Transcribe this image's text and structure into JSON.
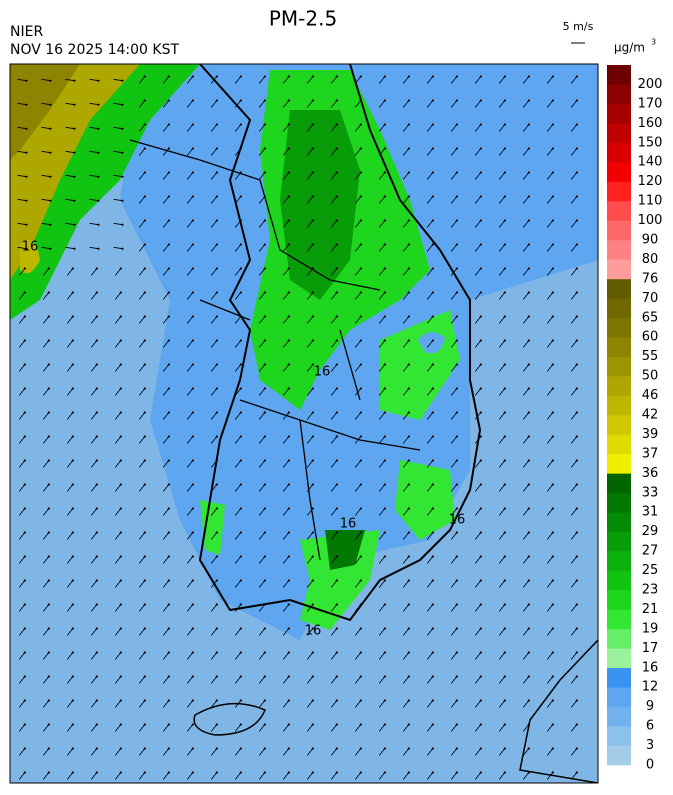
{
  "header": {
    "title": "PM-2.5",
    "agency": "NIER",
    "timestamp": "NOV 16 2025 14:00 KST",
    "wind_scale": "5 m/s",
    "unit": "µg/m",
    "unit_exponent": "3"
  },
  "map": {
    "contour_labels": [
      "16",
      "16",
      "16",
      "16",
      "16"
    ]
  },
  "colorbar": {
    "labels": [
      "0",
      "3",
      "6",
      "9",
      "12",
      "16",
      "17",
      "19",
      "21",
      "23",
      "25",
      "27",
      "29",
      "31",
      "33",
      "36",
      "37",
      "39",
      "42",
      "46",
      "50",
      "55",
      "60",
      "65",
      "70",
      "76",
      "80",
      "90",
      "100",
      "110",
      "120",
      "140",
      "150",
      "160",
      "170",
      "200"
    ],
    "colors": [
      "#a3cde6",
      "#8cc1eb",
      "#72b2ee",
      "#5ea6f0",
      "#3b92f2",
      "#9cf29c",
      "#66ee66",
      "#33e633",
      "#1fd61f",
      "#12c412",
      "#0cb00c",
      "#089c08",
      "#058a05",
      "#037803",
      "#016601",
      "#f2ee00",
      "#e0da00",
      "#cfc800",
      "#beb700",
      "#aea700",
      "#9d9500",
      "#8d8500",
      "#7e7600",
      "#706900",
      "#625b00",
      "#ff9c9c",
      "#ff8282",
      "#ff6868",
      "#ff4d4d",
      "#ff2020",
      "#f20000",
      "#d80000",
      "#be0000",
      "#a40000",
      "#8c0000",
      "#6e0000"
    ]
  }
}
